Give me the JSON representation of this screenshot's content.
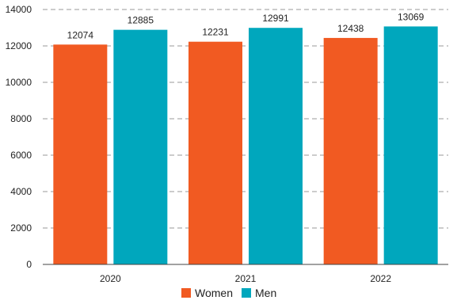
{
  "chart_data": {
    "type": "bar",
    "categories": [
      "2020",
      "2021",
      "2022"
    ],
    "series": [
      {
        "name": "Women",
        "values": [
          12074,
          12231,
          12438
        ],
        "color": "#F15A22"
      },
      {
        "name": "Men",
        "values": [
          12885,
          12991,
          13069
        ],
        "color": "#00A7BD"
      }
    ],
    "ylim": [
      0,
      14000
    ],
    "yticks": [
      0,
      2000,
      4000,
      6000,
      8000,
      10000,
      12000,
      14000
    ],
    "grid": true,
    "legend_position": "bottom-center",
    "show_data_labels": true
  }
}
